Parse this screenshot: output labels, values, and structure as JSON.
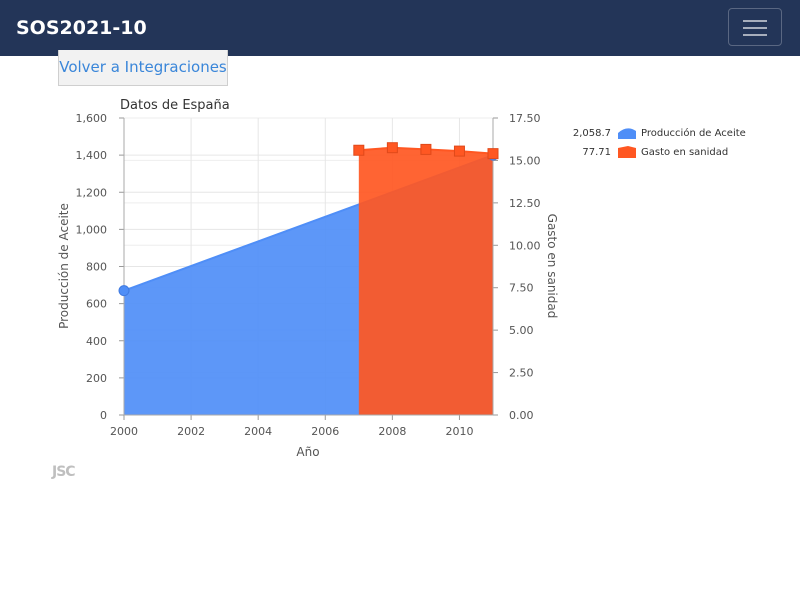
{
  "navbar": {
    "brand": "SOS2021-10"
  },
  "back_button": {
    "label": "Volver a Integraciones"
  },
  "logo": {
    "text": "JSC"
  },
  "chart_data": {
    "type": "area",
    "title": "Datos de España",
    "xlabel": "Año",
    "x_ticks": [
      2000,
      2002,
      2004,
      2006,
      2008,
      2010
    ],
    "xlim": [
      2000,
      2011
    ],
    "left_axis": {
      "label": "Producción de Aceite",
      "ylim": [
        0,
        1600
      ],
      "ticks": [
        "0",
        "200",
        "400",
        "600",
        "800",
        "1,000",
        "1,200",
        "1,400",
        "1,600"
      ]
    },
    "right_axis": {
      "label": "Gasto en sanidad",
      "ylim": [
        0,
        17.5
      ],
      "ticks": [
        "0.00",
        "2.50",
        "5.00",
        "7.50",
        "10.00",
        "12.50",
        "15.00",
        "17.50"
      ]
    },
    "grid": true,
    "legend_position": "top-right",
    "series": [
      {
        "name": "Producción de Aceite",
        "axis": "left",
        "color": "#4f8ef7",
        "legend_value": "2,058.7",
        "marker": "circle",
        "points": [
          [
            2000,
            670
          ],
          [
            2011,
            1400
          ]
        ]
      },
      {
        "name": "Gasto en sanidad",
        "axis": "right",
        "color": "#ff5722",
        "legend_value": "77.71",
        "marker": "square",
        "points": [
          [
            2007,
            15.6
          ],
          [
            2008,
            15.75
          ],
          [
            2009,
            15.65
          ],
          [
            2010,
            15.55
          ],
          [
            2011,
            15.4
          ]
        ]
      }
    ]
  }
}
